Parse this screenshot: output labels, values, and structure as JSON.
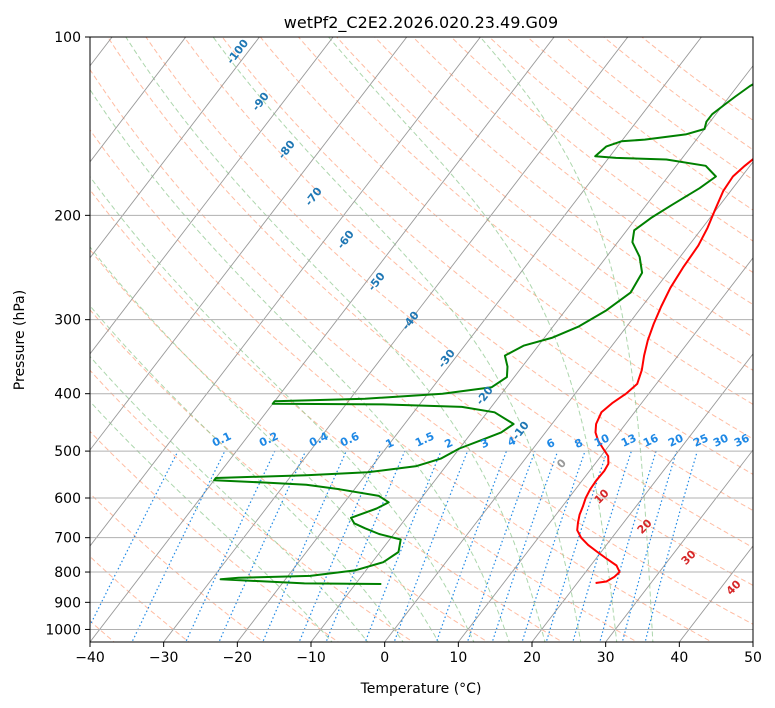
{
  "chart_data": {
    "type": "line",
    "chart_kind": "skew-T log-P diagram",
    "title": "wetPf2_C2E2.2026.020.23.49.G09",
    "xlabel": "Temperature (°C)",
    "ylabel": "Pressure (hPa)",
    "xlim": [
      -40,
      50
    ],
    "ylim": [
      1050,
      100
    ],
    "y_scale": "log",
    "grid": true,
    "x_ticks": [
      -40,
      -30,
      -20,
      -10,
      0,
      10,
      20,
      30,
      40,
      50
    ],
    "x_tick_labels": [
      "−40",
      "−30",
      "−20",
      "−10",
      "0",
      "10",
      "20",
      "30",
      "40",
      "50"
    ],
    "y_ticks": [
      100,
      200,
      300,
      400,
      500,
      600,
      700,
      800,
      900,
      1000
    ],
    "y_tick_labels": [
      "100",
      "200",
      "300",
      "400",
      "500",
      "600",
      "700",
      "800",
      "900",
      "1000"
    ],
    "colors": {
      "temperature": "#ff0000",
      "dewpoint": "#008000",
      "isotherm": "#999999",
      "dry_adiabat": "#ffa07a",
      "moist_adiabat": "#90c890",
      "mixing_ratio": "#1e88e5",
      "isotherm_label": "#1f77b4",
      "dry_adiabat_label": "#d62728",
      "grid": "#b0b0b0"
    },
    "series": [
      {
        "key": "temperature",
        "points": [
          [
            22.5,
            835
          ],
          [
            23.8,
            830
          ],
          [
            24.4,
            815
          ],
          [
            24.6,
            800
          ],
          [
            23.5,
            780
          ],
          [
            21.5,
            760
          ],
          [
            19.5,
            740
          ],
          [
            17.5,
            720
          ],
          [
            15.8,
            700
          ],
          [
            14.5,
            680
          ],
          [
            13.8,
            660
          ],
          [
            13.2,
            640
          ],
          [
            12.8,
            620
          ],
          [
            12.3,
            600
          ],
          [
            12.0,
            580
          ],
          [
            11.9,
            560
          ],
          [
            12.0,
            540
          ],
          [
            11.8,
            525
          ],
          [
            11.0,
            510
          ],
          [
            9.5,
            495
          ],
          [
            8.0,
            480
          ],
          [
            6.8,
            465
          ],
          [
            6.0,
            450
          ],
          [
            5.5,
            430
          ],
          [
            6.0,
            415
          ],
          [
            6.9,
            400
          ],
          [
            7.4,
            385
          ],
          [
            6.6,
            365
          ],
          [
            5.4,
            345
          ],
          [
            4.3,
            325
          ],
          [
            3.4,
            305
          ],
          [
            2.6,
            285
          ],
          [
            1.9,
            265
          ],
          [
            1.5,
            245
          ],
          [
            1.3,
            225
          ],
          [
            0.7,
            210
          ],
          [
            -0.2,
            195
          ],
          [
            -1.0,
            182
          ],
          [
            -1.2,
            172
          ],
          [
            -0.7,
            165
          ],
          [
            0.1,
            157
          ],
          [
            0.7,
            150
          ],
          [
            0.9,
            143
          ],
          [
            0.6,
            135
          ],
          [
            -0.2,
            127
          ],
          [
            -1.0,
            119
          ],
          [
            -1.8,
            112
          ],
          [
            -2.2,
            106
          ],
          [
            -2.3,
            101
          ]
        ]
      },
      {
        "key": "dewpoint",
        "points": [
          [
            -6.5,
            838
          ],
          [
            -17,
            836
          ],
          [
            -28.8,
            823
          ],
          [
            -26.5,
            818
          ],
          [
            -17,
            812
          ],
          [
            -11.5,
            795
          ],
          [
            -8.5,
            770
          ],
          [
            -7.5,
            740
          ],
          [
            -8.5,
            705
          ],
          [
            -12,
            690
          ],
          [
            -14.5,
            675
          ],
          [
            -16.5,
            662
          ],
          [
            -17.5,
            648
          ],
          [
            -15,
            625
          ],
          [
            -14,
            610
          ],
          [
            -16,
            595
          ],
          [
            -22,
            580
          ],
          [
            -27,
            570
          ],
          [
            -33,
            565
          ],
          [
            -40,
            560
          ],
          [
            -40,
            555
          ],
          [
            -28,
            549
          ],
          [
            -20,
            543
          ],
          [
            -14,
            530
          ],
          [
            -11.5,
            515
          ],
          [
            -10,
            495
          ],
          [
            -8,
            480
          ],
          [
            -6,
            465
          ],
          [
            -5.2,
            450
          ],
          [
            -9,
            430
          ],
          [
            -14,
            421
          ],
          [
            -25,
            417
          ],
          [
            -40,
            416
          ],
          [
            -40,
            412
          ],
          [
            -28,
            408
          ],
          [
            -18,
            400
          ],
          [
            -12,
            390
          ],
          [
            -11,
            375
          ],
          [
            -12,
            360
          ],
          [
            -13.5,
            345
          ],
          [
            -12,
            332
          ],
          [
            -9,
            322
          ],
          [
            -6.5,
            308
          ],
          [
            -4.5,
            290
          ],
          [
            -3,
            270
          ],
          [
            -3.5,
            250
          ],
          [
            -5.5,
            235
          ],
          [
            -8,
            222
          ],
          [
            -9,
            212
          ],
          [
            -8,
            202
          ],
          [
            -6.5,
            192
          ],
          [
            -4.5,
            180
          ],
          [
            -3.5,
            172
          ],
          [
            -6,
            165
          ],
          [
            -12,
            161
          ],
          [
            -19,
            160
          ],
          [
            -22,
            159
          ],
          [
            -21.5,
            153
          ],
          [
            -20,
            150
          ],
          [
            -17,
            149
          ],
          [
            -12,
            146
          ],
          [
            -10,
            143
          ],
          [
            -10.5,
            139
          ],
          [
            -10.5,
            135
          ],
          [
            -9.8,
            130
          ],
          [
            -9.2,
            126
          ],
          [
            -8.3,
            121
          ],
          [
            -6.8,
            116
          ],
          [
            -5.4,
            111
          ],
          [
            -4.4,
            106
          ],
          [
            -3.9,
            101
          ]
        ]
      }
    ],
    "reference_lines": {
      "isotherms": [
        -150,
        -140,
        -130,
        -120,
        -110,
        -100,
        -90,
        -80,
        -70,
        -60,
        -50,
        -40,
        -30,
        -20,
        -10,
        0,
        10,
        20,
        30,
        40,
        50
      ],
      "dry_adiabats_C": [
        -90,
        -80,
        -70,
        -60,
        -50,
        -40,
        -30,
        -20,
        -10,
        0,
        10,
        20,
        30,
        40,
        50,
        60,
        70,
        80,
        90,
        100,
        110,
        120,
        130,
        140,
        150,
        160,
        170,
        180,
        190,
        200
      ],
      "moist_adiabats_C": [
        -10,
        -5,
        0,
        5,
        10,
        15,
        20,
        25,
        30,
        35
      ],
      "mixing_ratio_gkg": [
        0.1,
        0.2,
        0.4,
        0.6,
        1,
        1.5,
        2,
        3,
        4,
        6,
        8,
        10,
        13,
        16,
        20,
        25,
        30,
        36
      ]
    },
    "annotations": {
      "isotherm_labels": [
        "-100",
        "-90",
        "-80",
        "-70",
        "-60",
        "-50",
        "-40",
        "-30",
        "-20",
        "-10"
      ],
      "mixing_ratio_labels": [
        "0.1",
        "0.2",
        "0.4",
        "0.6",
        "1",
        "1.5",
        "2",
        "3",
        "4",
        "6",
        "8",
        "10",
        "13",
        "16",
        "20",
        "25",
        "30",
        "36"
      ],
      "dry_adiabat_labels": [
        "0",
        "10",
        "20",
        "30",
        "40"
      ]
    }
  }
}
